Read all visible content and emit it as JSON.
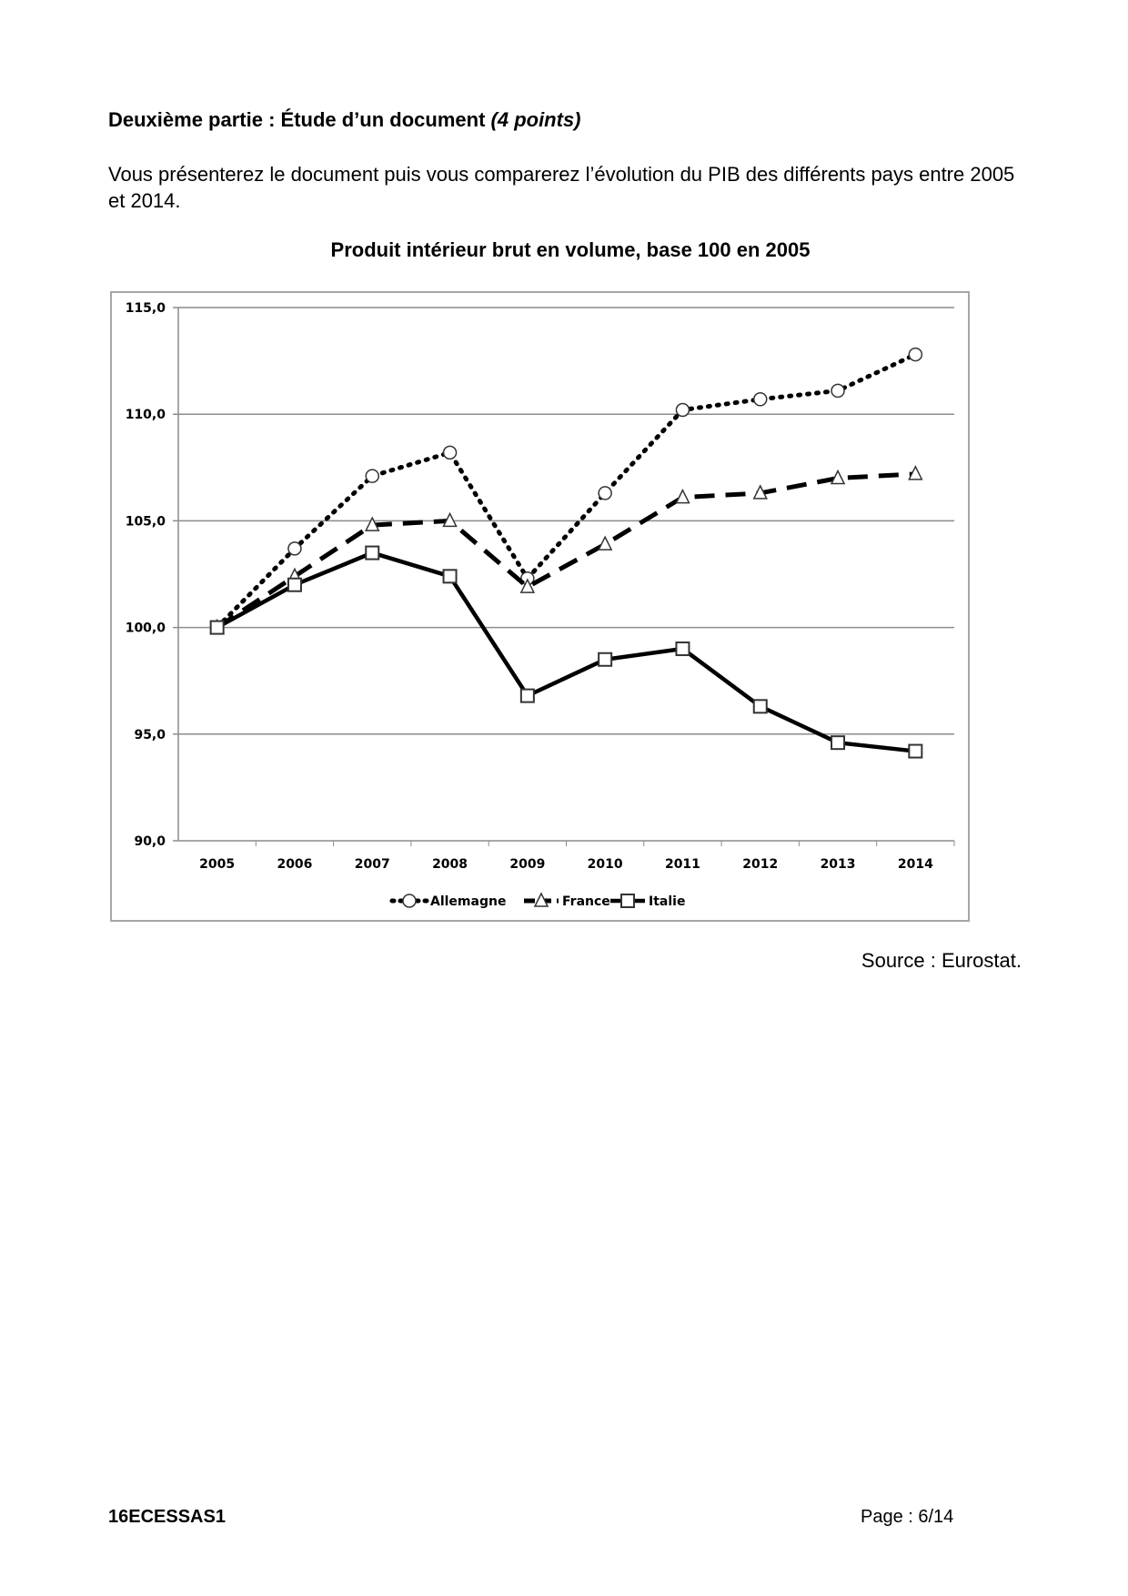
{
  "heading": {
    "main": "Deuxième partie : Étude d’un document ",
    "points": "(4 points)"
  },
  "instruction": "Vous présenterez le document puis vous comparerez l’évolution du PIB des différents pays entre 2005 et 2014.",
  "source": "Source : Eurostat.",
  "footer": {
    "code": "16ECESSAS1",
    "page": "Page : 6/14"
  },
  "chart_data": {
    "type": "line",
    "title": "Produit intérieur brut en volume, base 100 en 2005",
    "xlabel": "",
    "ylabel": "",
    "categories": [
      "2005",
      "2006",
      "2007",
      "2008",
      "2009",
      "2010",
      "2011",
      "2012",
      "2013",
      "2014"
    ],
    "ylim": [
      90,
      115
    ],
    "yticks": [
      "90,0",
      "95,0",
      "100,0",
      "105,0",
      "110,0",
      "115,0"
    ],
    "grid": true,
    "legend": "bottom",
    "series": [
      {
        "name": "Allemagne",
        "marker": "circle",
        "style": "dotted",
        "values": [
          100,
          103.7,
          107.1,
          108.2,
          102.3,
          106.3,
          110.2,
          110.7,
          111.1,
          112.8
        ]
      },
      {
        "name": "France",
        "marker": "triangle",
        "style": "dashed",
        "values": [
          100,
          102.4,
          104.8,
          105.0,
          101.9,
          103.9,
          106.1,
          106.3,
          107.0,
          107.2
        ]
      },
      {
        "name": "Italie",
        "marker": "square",
        "style": "solid",
        "values": [
          100,
          102.0,
          103.5,
          102.4,
          96.8,
          98.5,
          99.0,
          96.3,
          94.6,
          94.2
        ]
      }
    ]
  }
}
